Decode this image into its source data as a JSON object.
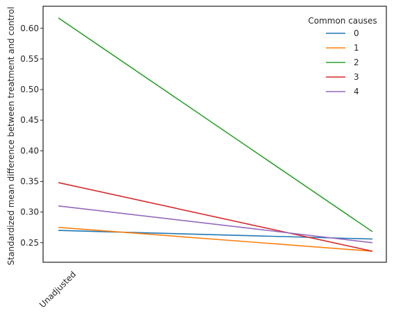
{
  "chart_data": {
    "type": "line",
    "x": [
      "Unadjusted",
      ""
    ],
    "xticks": [
      "Unadjusted"
    ],
    "ylabel": "Standardized mean difference between treatment and control",
    "ylim": [
      0.218,
      0.636
    ],
    "yticks": [
      0.25,
      0.3,
      0.35,
      0.4,
      0.45,
      0.5,
      0.55,
      0.6
    ],
    "yticklabels": [
      "0.25",
      "0.30",
      "0.35",
      "0.40",
      "0.45",
      "0.50",
      "0.55",
      "0.60"
    ],
    "legend": {
      "title": "Common causes",
      "placement": "top-right"
    },
    "grid": false,
    "series": [
      {
        "name": "0",
        "color": "#1f77b4",
        "values": [
          0.27,
          0.256
        ]
      },
      {
        "name": "1",
        "color": "#ff7f0e",
        "values": [
          0.275,
          0.236
        ]
      },
      {
        "name": "2",
        "color": "#2ca02c",
        "values": [
          0.617,
          0.268
        ]
      },
      {
        "name": "3",
        "color": "#d62728",
        "values": [
          0.348,
          0.236
        ]
      },
      {
        "name": "4",
        "color": "#9467bd",
        "values": [
          0.31,
          0.25
        ]
      }
    ]
  }
}
